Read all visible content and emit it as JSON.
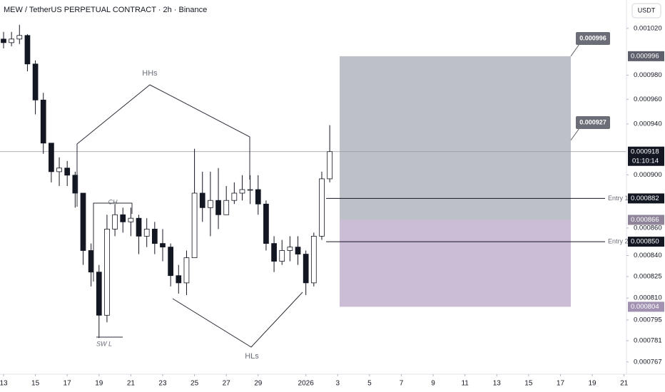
{
  "chart_data": {
    "type": "candlestick",
    "title": "MEW / TetherUS PERPETUAL CONTRACT · 2h · Binance",
    "currency": "USDT",
    "x": [
      0,
      0.5,
      1,
      1.5,
      2,
      2.5,
      3,
      3.5,
      4,
      4.5,
      5,
      5.5,
      6,
      6.5,
      7,
      7.5,
      8,
      8.5,
      9,
      9.5,
      10,
      10.5,
      11,
      11.5,
      12,
      12.5,
      13,
      13.5,
      14,
      14.5,
      15,
      15.5,
      16,
      16.5,
      17,
      17.5,
      18,
      18.5,
      19,
      19.5,
      20,
      20.5
    ],
    "open": [
      0.0010107,
      0.0010076,
      0.0010107,
      0.0010138,
      0.0009894,
      0.0009594,
      0.0009247,
      0.0009024,
      0.0009052,
      0.0008997,
      0.000886,
      0.0008436,
      0.0008282,
      0.0007982,
      0.0008592,
      0.0008698,
      0.0008645,
      0.0008672,
      0.000854,
      0.0008592,
      0.0008487,
      0.0008461,
      0.0008257,
      0.0008206,
      0.0008384,
      0.000886,
      0.0008751,
      0.0008805,
      0.0008698,
      0.0008805,
      0.000886,
      0.0008887,
      0.0008887,
      0.0008778,
      0.0008487,
      0.0008359,
      0.0008436,
      0.0008461,
      0.000841,
      0.0008206,
      0.000854,
      0.0008969
    ],
    "high": [
      0.0010169,
      0.0010169,
      0.0010231,
      0.001015,
      0.0009924,
      0.0009653,
      0.0009247,
      0.0009135,
      0.0009107,
      0.0009024,
      0.000886,
      0.0008487,
      0.0008333,
      0.0008698,
      0.0008778,
      0.0008751,
      0.0008751,
      0.0008698,
      0.0008672,
      0.0008645,
      0.0008592,
      0.0008487,
      0.0008333,
      0.0008436,
      0.0009202,
      0.0009024,
      0.0009024,
      0.0009052,
      0.0008914,
      0.0008942,
      0.0008997,
      0.0008997,
      0.0008997,
      0.0008805,
      0.000854,
      0.0008513,
      0.000854,
      0.000854,
      0.0008436,
      0.0008566,
      0.0009024,
      0.000939
    ],
    "low": [
      0.0010027,
      0.0010045,
      0.0010064,
      0.0009832,
      0.0009477,
      0.0009163,
      0.0008942,
      0.0008914,
      0.0008914,
      0.0008751,
      0.0008333,
      0.0008181,
      0.0007828,
      0.0007934,
      0.000854,
      0.0008566,
      0.000854,
      0.000841,
      0.0008461,
      0.000841,
      0.0008359,
      0.0008181,
      0.0008131,
      0.0008121,
      0.0008384,
      0.0008645,
      0.000854,
      0.0008592,
      0.0008698,
      0.0008778,
      0.0008805,
      0.0008778,
      0.0008698,
      0.0008436,
      0.0008282,
      0.0008333,
      0.0008359,
      0.0008333,
      0.0008121,
      0.0008181,
      0.0008513,
      0.0008942
    ],
    "close": [
      0.0010076,
      0.0010107,
      0.0010138,
      0.0009894,
      0.0009594,
      0.0009247,
      0.0009024,
      0.0009052,
      0.0008997,
      0.000886,
      0.0008436,
      0.0008282,
      0.0007982,
      0.0008592,
      0.0008698,
      0.0008645,
      0.0008672,
      0.000854,
      0.0008592,
      0.0008487,
      0.0008461,
      0.0008257,
      0.0008206,
      0.0008384,
      0.000886,
      0.0008751,
      0.0008805,
      0.0008698,
      0.0008805,
      0.000886,
      0.0008887,
      0.0008887,
      0.0008778,
      0.0008487,
      0.0008359,
      0.0008436,
      0.0008461,
      0.000841,
      0.0008206,
      0.000854,
      0.0008969,
      0.000918
    ],
    "up_color": "#ffffff",
    "down_color": "#131722",
    "xlim": [
      -0.224,
      39.15
    ],
    "xticks": [
      {
        "value": 0,
        "label": "13"
      },
      {
        "value": 2,
        "label": "15"
      },
      {
        "value": 4,
        "label": "17"
      },
      {
        "value": 6,
        "label": "19"
      },
      {
        "value": 8,
        "label": "21"
      },
      {
        "value": 10,
        "label": "23"
      },
      {
        "value": 12,
        "label": "25"
      },
      {
        "value": 14,
        "label": "27"
      },
      {
        "value": 16,
        "label": "29"
      },
      {
        "value": 19,
        "label": "2026"
      },
      {
        "value": 21,
        "label": "3"
      },
      {
        "value": 23,
        "label": "5"
      },
      {
        "value": 25,
        "label": "7"
      },
      {
        "value": 27,
        "label": "9"
      },
      {
        "value": 29,
        "label": "11"
      },
      {
        "value": 31,
        "label": "13"
      },
      {
        "value": 33,
        "label": "15"
      },
      {
        "value": 35,
        "label": "17"
      },
      {
        "value": 37,
        "label": "19"
      },
      {
        "value": 39,
        "label": "21"
      }
    ],
    "ylim": [
      0.000759,
      0.001045
    ],
    "log_scale": true,
    "grid": false,
    "yticks": [
      {
        "value": 0.00102,
        "label": "0.001020"
      },
      {
        "value": 0.00098,
        "label": "0.000980"
      },
      {
        "value": 0.00096,
        "label": "0.000960"
      },
      {
        "value": 0.00094,
        "label": "0.000940"
      },
      {
        "value": 0.0009,
        "label": "0.000900"
      },
      {
        "value": 0.00086,
        "label": "0.000860"
      },
      {
        "value": 0.00084,
        "label": "0.000840"
      },
      0.000825,
      {
        "value": 0.00081,
        "label": "0.000810"
      },
      0.000795,
      0.000781,
      0.000767
    ],
    "current_price": 0.000918,
    "countdown": "01:10:14",
    "levels": [
      {
        "name": "Entry 1",
        "value": 0.000882
      },
      {
        "name": "Entry 2",
        "value": 0.00085,
        "label": "0.000850"
      }
    ],
    "position": {
      "target": 0.000996,
      "entry": 0.000866,
      "stop": 0.000804,
      "marker": 0.000927,
      "profit_color": "#b2b5bc",
      "loss_color": "#c3b2d0"
    },
    "annotations": {
      "hhs": "HHs",
      "hls": "HLs",
      "ch": "CH",
      "swl": "SW L"
    }
  }
}
